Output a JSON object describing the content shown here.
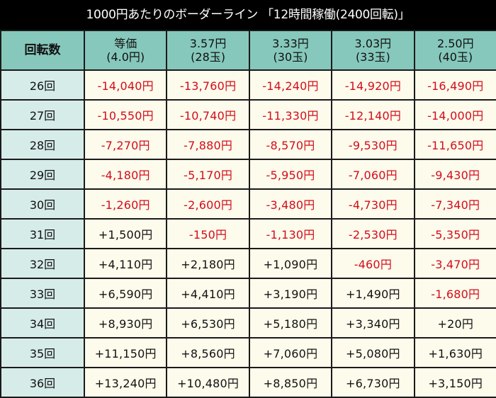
{
  "title": "1000円あたりのボーダーライン 「12時間稼働(2400回転)」",
  "colors": {
    "title_bg": "#000000",
    "title_text": "#ffffff",
    "header_bg": "#86c8bc",
    "row_header_bg": "#d6ece8",
    "cell_bg": "#fdfbec",
    "negative": "#d40c1a",
    "positive": "#111111",
    "border": "#1a1a1a"
  },
  "header": {
    "row_label": "回転数",
    "columns": [
      {
        "line1": "等価",
        "line2": "(4.0円)"
      },
      {
        "line1": "3.57円",
        "line2": "(28玉)"
      },
      {
        "line1": "3.33円",
        "line2": "(30玉)"
      },
      {
        "line1": "3.03円",
        "line2": "(33玉)"
      },
      {
        "line1": "2.50円",
        "line2": "(40玉)"
      }
    ]
  },
  "rows": [
    {
      "label": "26回",
      "values": [
        "-14,040円",
        "-13,760円",
        "-14,240円",
        "-14,920円",
        "-16,490円"
      ]
    },
    {
      "label": "27回",
      "values": [
        "-10,550円",
        "-10,740円",
        "-11,330円",
        "-12,140円",
        "-14,000円"
      ]
    },
    {
      "label": "28回",
      "values": [
        "-7,270円",
        "-7,880円",
        "-8,570円",
        "-9,530円",
        "-11,650円"
      ]
    },
    {
      "label": "29回",
      "values": [
        "-4,180円",
        "-5,170円",
        "-5,950円",
        "-7,060円",
        "-9,430円"
      ]
    },
    {
      "label": "30回",
      "values": [
        "-1,260円",
        "-2,600円",
        "-3,480円",
        "-4,730円",
        "-7,340円"
      ]
    },
    {
      "label": "31回",
      "values": [
        "+1,500円",
        "-150円",
        "-1,130円",
        "-2,530円",
        "-5,350円"
      ]
    },
    {
      "label": "32回",
      "values": [
        "+4,110円",
        "+2,180円",
        "+1,090円",
        "-460円",
        "-3,470円"
      ]
    },
    {
      "label": "33回",
      "values": [
        "+6,590円",
        "+4,410円",
        "+3,190円",
        "+1,490円",
        "-1,680円"
      ]
    },
    {
      "label": "34回",
      "values": [
        "+8,930円",
        "+6,530円",
        "+5,180円",
        "+3,340円",
        "+20円"
      ]
    },
    {
      "label": "35回",
      "values": [
        "+11,150円",
        "+8,560円",
        "+7,060円",
        "+5,080円",
        "+1,630円"
      ]
    },
    {
      "label": "36回",
      "values": [
        "+13,240円",
        "+10,480円",
        "+8,850円",
        "+6,730円",
        "+3,150円"
      ]
    }
  ]
}
